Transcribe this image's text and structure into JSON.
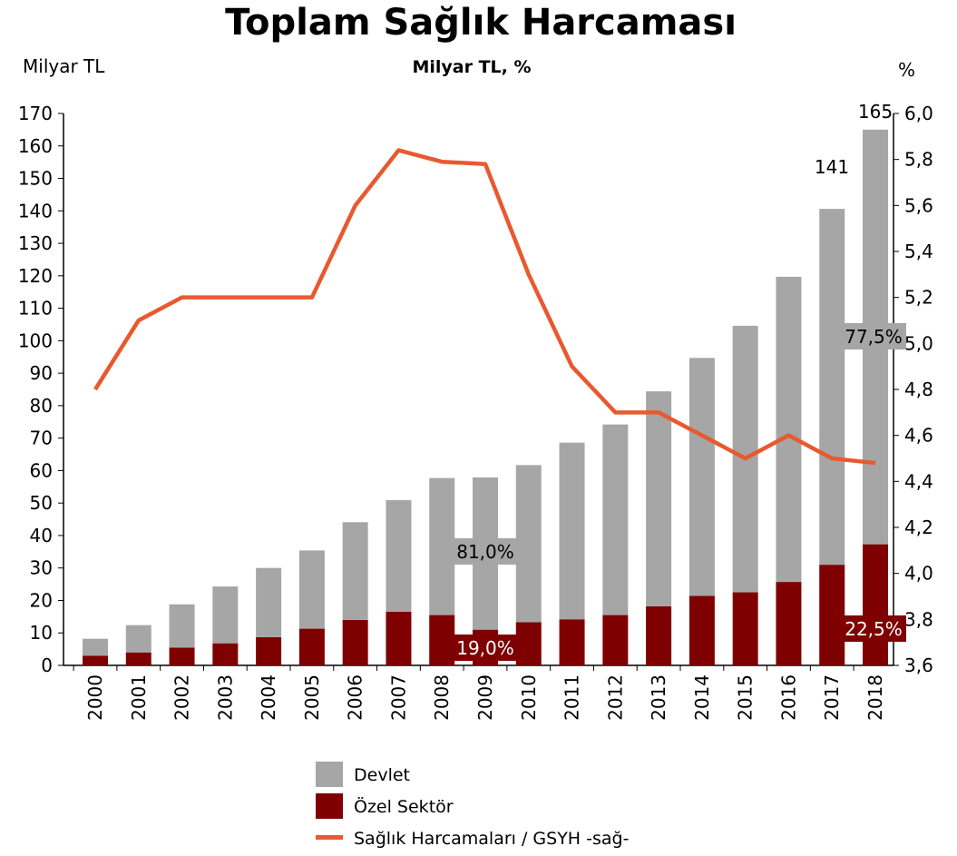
{
  "chart_data": {
    "type": "bar",
    "title": "Toplam Sağlık Harcaması",
    "subtitle": "Milyar TL, %",
    "ylabel": "Milyar TL",
    "y2label": "%",
    "categories": [
      "2000",
      "2001",
      "2002",
      "2003",
      "2004",
      "2005",
      "2006",
      "2007",
      "2008",
      "2009",
      "2010",
      "2011",
      "2012",
      "2013",
      "2014",
      "2015",
      "2016",
      "2017",
      "2018"
    ],
    "stacked": true,
    "series": [
      {
        "name": "Özel Sektör",
        "color": "#7f0000",
        "values": [
          3,
          4,
          5.5,
          6.8,
          8.7,
          11.3,
          14,
          16.5,
          15.5,
          11,
          13.3,
          14.2,
          15.5,
          18.2,
          21.4,
          22.5,
          25.7,
          31,
          37.3
        ]
      },
      {
        "name": "Devlet",
        "color": "#a6a6a6",
        "values": [
          5.2,
          8.4,
          13.3,
          17.5,
          21.3,
          24.1,
          30.1,
          34.4,
          42.2,
          46.9,
          48.4,
          54.4,
          58.7,
          66.2,
          73.3,
          82.1,
          94.0,
          109.6,
          127.7
        ]
      },
      {
        "name": "Sağlık Harcamaları / GSYH -sağ-",
        "color": "#e8592f",
        "type": "line",
        "axis": "y2",
        "values": [
          4.8,
          5.1,
          5.2,
          5.2,
          5.2,
          5.2,
          5.6,
          5.84,
          5.79,
          5.78,
          5.3,
          4.9,
          4.7,
          4.7,
          4.6,
          4.5,
          4.6,
          4.5,
          4.48
        ]
      }
    ],
    "annotations": [
      "165",
      "141",
      "81,0%",
      "19,0%",
      "77,5%",
      "22,5%"
    ],
    "ylim": [
      0,
      170
    ],
    "yticks": [
      0,
      10,
      20,
      30,
      40,
      50,
      60,
      70,
      80,
      90,
      100,
      110,
      120,
      130,
      140,
      150,
      160,
      170
    ],
    "y2lim": [
      3.6,
      6.0
    ],
    "y2ticks": [
      {
        "value": 3.6,
        "label": "3,6"
      },
      {
        "value": 3.8,
        "label": "3,8"
      },
      {
        "value": 4.0,
        "label": "4,0"
      },
      {
        "value": 4.2,
        "label": "4,2"
      },
      {
        "value": 4.4,
        "label": "4,4"
      },
      {
        "value": 4.6,
        "label": "4,6"
      },
      {
        "value": 4.8,
        "label": "4,8"
      },
      {
        "value": 5.0,
        "label": "5,0"
      },
      {
        "value": 5.2,
        "label": "5,2"
      },
      {
        "value": 5.4,
        "label": "5,4"
      },
      {
        "value": 5.6,
        "label": "5,6"
      },
      {
        "value": 5.8,
        "label": "5,8"
      },
      {
        "value": 6.0,
        "label": "6,0"
      }
    ],
    "grid": false,
    "legend": "bottom"
  }
}
